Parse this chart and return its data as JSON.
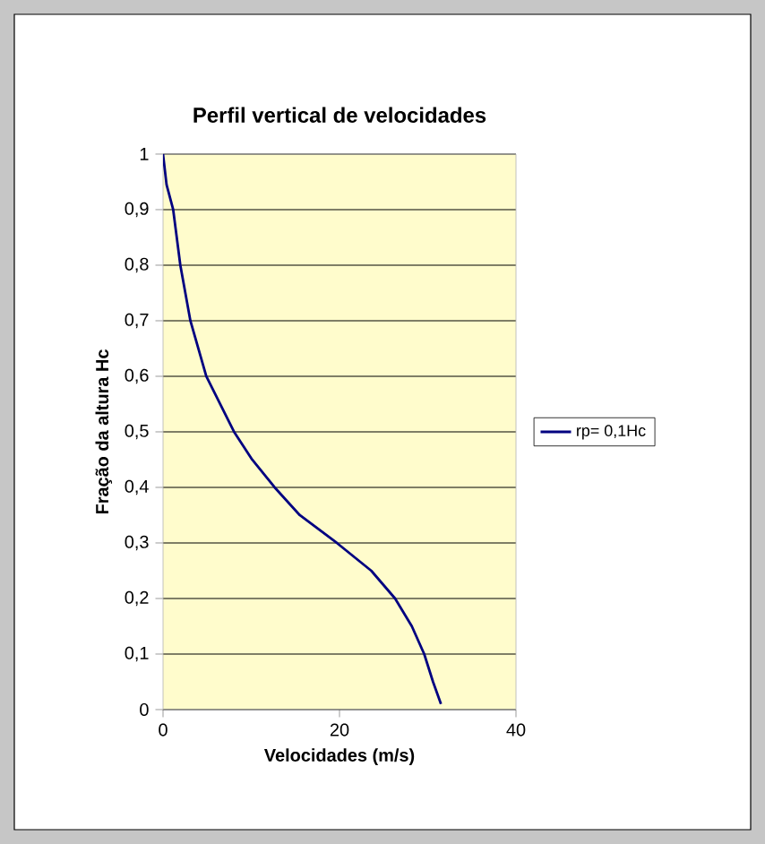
{
  "chart_data": {
    "type": "line",
    "title": "Perfil vertical de velocidades",
    "xlabel": "Velocidades (m/s)",
    "ylabel": "Fração da altura Hc",
    "series": [
      {
        "name": "rp= 0,1Hc",
        "color": "#000080",
        "x": [
          0,
          0.4,
          1.15,
          1.96,
          3.1,
          4.9,
          8.05,
          10.1,
          12.65,
          15.5,
          19.7,
          23.6,
          26.3,
          28.2,
          29.6,
          30.6,
          31.5
        ],
        "values": [
          1,
          0.945,
          0.9,
          0.8,
          0.7,
          0.6,
          0.5,
          0.45,
          0.4,
          0.35,
          0.3,
          0.25,
          0.2,
          0.15,
          0.1,
          0.05,
          0.01
        ]
      }
    ],
    "xlim": [
      0,
      40
    ],
    "ylim": [
      0,
      1
    ],
    "xticks": [
      0,
      20,
      40
    ],
    "yticks": [
      0,
      {
        "value": 0.1,
        "label": "0,1"
      },
      {
        "value": 0.2,
        "label": "0,2"
      },
      {
        "value": 0.3,
        "label": "0,3"
      },
      {
        "value": 0.4,
        "label": "0,4"
      },
      {
        "value": 0.5,
        "label": "0,5"
      },
      {
        "value": 0.6,
        "label": "0,6"
      },
      {
        "value": 0.7,
        "label": "0,7"
      },
      {
        "value": 0.8,
        "label": "0,8"
      },
      {
        "value": 0.9,
        "label": "0,9"
      },
      1
    ],
    "grid": "y",
    "legend": "right",
    "marker": "none",
    "line_style": "solid"
  }
}
